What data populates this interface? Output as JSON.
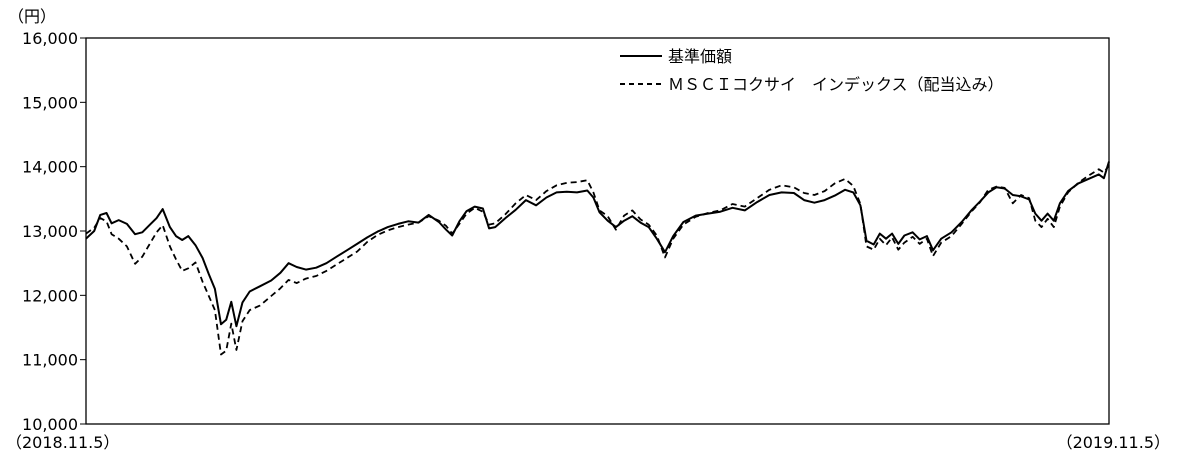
{
  "chart_data": {
    "type": "line",
    "unit": "（円）",
    "start_label": "（2018.11.5）",
    "end_label": "（2019.11.5）",
    "ylim": [
      10000,
      16000
    ],
    "yticks": [
      10000,
      11000,
      12000,
      13000,
      14000,
      15000,
      16000
    ],
    "ytick_labels": [
      "10,000",
      "11,000",
      "12,000",
      "13,000",
      "14,000",
      "15,000",
      "16,000"
    ],
    "grid": false,
    "legend_position": "top-right",
    "x_range": [
      0,
      1
    ],
    "series": [
      {
        "name": "基準価額",
        "style": "solid",
        "points": [
          [
            0.0,
            12880
          ],
          [
            0.008,
            13000
          ],
          [
            0.014,
            13250
          ],
          [
            0.02,
            13280
          ],
          [
            0.025,
            13120
          ],
          [
            0.032,
            13170
          ],
          [
            0.04,
            13110
          ],
          [
            0.048,
            12950
          ],
          [
            0.055,
            12980
          ],
          [
            0.062,
            13090
          ],
          [
            0.069,
            13200
          ],
          [
            0.075,
            13340
          ],
          [
            0.082,
            13060
          ],
          [
            0.088,
            12920
          ],
          [
            0.094,
            12860
          ],
          [
            0.1,
            12920
          ],
          [
            0.107,
            12780
          ],
          [
            0.114,
            12580
          ],
          [
            0.12,
            12330
          ],
          [
            0.126,
            12100
          ],
          [
            0.132,
            11550
          ],
          [
            0.137,
            11620
          ],
          [
            0.142,
            11900
          ],
          [
            0.147,
            11520
          ],
          [
            0.153,
            11890
          ],
          [
            0.16,
            12060
          ],
          [
            0.17,
            12140
          ],
          [
            0.181,
            12230
          ],
          [
            0.19,
            12350
          ],
          [
            0.198,
            12500
          ],
          [
            0.206,
            12440
          ],
          [
            0.215,
            12400
          ],
          [
            0.225,
            12430
          ],
          [
            0.235,
            12500
          ],
          [
            0.245,
            12600
          ],
          [
            0.255,
            12700
          ],
          [
            0.265,
            12800
          ],
          [
            0.275,
            12900
          ],
          [
            0.285,
            12990
          ],
          [
            0.295,
            13060
          ],
          [
            0.305,
            13110
          ],
          [
            0.315,
            13150
          ],
          [
            0.325,
            13130
          ],
          [
            0.335,
            13250
          ],
          [
            0.345,
            13140
          ],
          [
            0.352,
            13020
          ],
          [
            0.358,
            12930
          ],
          [
            0.365,
            13150
          ],
          [
            0.372,
            13310
          ],
          [
            0.38,
            13380
          ],
          [
            0.388,
            13350
          ],
          [
            0.394,
            13040
          ],
          [
            0.4,
            13060
          ],
          [
            0.41,
            13200
          ],
          [
            0.42,
            13330
          ],
          [
            0.43,
            13480
          ],
          [
            0.44,
            13400
          ],
          [
            0.45,
            13520
          ],
          [
            0.46,
            13600
          ],
          [
            0.47,
            13610
          ],
          [
            0.48,
            13600
          ],
          [
            0.49,
            13630
          ],
          [
            0.496,
            13520
          ],
          [
            0.502,
            13290
          ],
          [
            0.51,
            13160
          ],
          [
            0.518,
            13060
          ],
          [
            0.526,
            13160
          ],
          [
            0.534,
            13230
          ],
          [
            0.542,
            13130
          ],
          [
            0.55,
            13060
          ],
          [
            0.558,
            12880
          ],
          [
            0.566,
            12670
          ],
          [
            0.574,
            12920
          ],
          [
            0.584,
            13140
          ],
          [
            0.596,
            13240
          ],
          [
            0.608,
            13270
          ],
          [
            0.62,
            13300
          ],
          [
            0.632,
            13360
          ],
          [
            0.644,
            13320
          ],
          [
            0.656,
            13450
          ],
          [
            0.668,
            13560
          ],
          [
            0.68,
            13600
          ],
          [
            0.692,
            13590
          ],
          [
            0.702,
            13480
          ],
          [
            0.712,
            13440
          ],
          [
            0.722,
            13480
          ],
          [
            0.732,
            13550
          ],
          [
            0.742,
            13640
          ],
          [
            0.75,
            13600
          ],
          [
            0.757,
            13400
          ],
          [
            0.763,
            12850
          ],
          [
            0.77,
            12790
          ],
          [
            0.776,
            12960
          ],
          [
            0.782,
            12880
          ],
          [
            0.788,
            12960
          ],
          [
            0.794,
            12800
          ],
          [
            0.8,
            12930
          ],
          [
            0.808,
            12980
          ],
          [
            0.815,
            12870
          ],
          [
            0.822,
            12920
          ],
          [
            0.828,
            12700
          ],
          [
            0.836,
            12880
          ],
          [
            0.846,
            12980
          ],
          [
            0.856,
            13140
          ],
          [
            0.866,
            13330
          ],
          [
            0.874,
            13460
          ],
          [
            0.882,
            13600
          ],
          [
            0.89,
            13680
          ],
          [
            0.898,
            13660
          ],
          [
            0.906,
            13560
          ],
          [
            0.914,
            13540
          ],
          [
            0.922,
            13490
          ],
          [
            0.928,
            13270
          ],
          [
            0.934,
            13160
          ],
          [
            0.94,
            13270
          ],
          [
            0.946,
            13160
          ],
          [
            0.952,
            13430
          ],
          [
            0.96,
            13620
          ],
          [
            0.97,
            13740
          ],
          [
            0.98,
            13810
          ],
          [
            0.99,
            13880
          ],
          [
            0.995,
            13820
          ],
          [
            1.0,
            14080
          ]
        ]
      },
      {
        "name": "ＭＳＣＩコクサイ　インデックス（配当込み）",
        "style": "dashed",
        "points": [
          [
            0.0,
            12960
          ],
          [
            0.008,
            13050
          ],
          [
            0.014,
            13200
          ],
          [
            0.02,
            13150
          ],
          [
            0.025,
            12950
          ],
          [
            0.032,
            12880
          ],
          [
            0.04,
            12760
          ],
          [
            0.048,
            12490
          ],
          [
            0.055,
            12600
          ],
          [
            0.062,
            12790
          ],
          [
            0.069,
            12980
          ],
          [
            0.075,
            13090
          ],
          [
            0.082,
            12760
          ],
          [
            0.088,
            12560
          ],
          [
            0.094,
            12380
          ],
          [
            0.1,
            12420
          ],
          [
            0.107,
            12510
          ],
          [
            0.114,
            12210
          ],
          [
            0.12,
            11990
          ],
          [
            0.126,
            11770
          ],
          [
            0.132,
            11080
          ],
          [
            0.137,
            11140
          ],
          [
            0.142,
            11560
          ],
          [
            0.147,
            11150
          ],
          [
            0.153,
            11600
          ],
          [
            0.16,
            11770
          ],
          [
            0.17,
            11840
          ],
          [
            0.181,
            11990
          ],
          [
            0.19,
            12110
          ],
          [
            0.198,
            12240
          ],
          [
            0.206,
            12190
          ],
          [
            0.215,
            12260
          ],
          [
            0.225,
            12300
          ],
          [
            0.235,
            12380
          ],
          [
            0.245,
            12480
          ],
          [
            0.255,
            12580
          ],
          [
            0.265,
            12680
          ],
          [
            0.275,
            12830
          ],
          [
            0.285,
            12940
          ],
          [
            0.295,
            13010
          ],
          [
            0.305,
            13060
          ],
          [
            0.315,
            13100
          ],
          [
            0.325,
            13130
          ],
          [
            0.335,
            13230
          ],
          [
            0.345,
            13160
          ],
          [
            0.352,
            13080
          ],
          [
            0.358,
            12960
          ],
          [
            0.365,
            13110
          ],
          [
            0.372,
            13270
          ],
          [
            0.38,
            13360
          ],
          [
            0.388,
            13300
          ],
          [
            0.394,
            13100
          ],
          [
            0.4,
            13120
          ],
          [
            0.41,
            13260
          ],
          [
            0.42,
            13430
          ],
          [
            0.43,
            13560
          ],
          [
            0.44,
            13480
          ],
          [
            0.45,
            13620
          ],
          [
            0.46,
            13710
          ],
          [
            0.47,
            13750
          ],
          [
            0.48,
            13760
          ],
          [
            0.49,
            13790
          ],
          [
            0.496,
            13600
          ],
          [
            0.502,
            13320
          ],
          [
            0.51,
            13230
          ],
          [
            0.518,
            13020
          ],
          [
            0.526,
            13240
          ],
          [
            0.534,
            13320
          ],
          [
            0.542,
            13180
          ],
          [
            0.55,
            13100
          ],
          [
            0.558,
            12930
          ],
          [
            0.566,
            12590
          ],
          [
            0.574,
            12880
          ],
          [
            0.584,
            13100
          ],
          [
            0.596,
            13220
          ],
          [
            0.608,
            13280
          ],
          [
            0.62,
            13320
          ],
          [
            0.632,
            13420
          ],
          [
            0.644,
            13380
          ],
          [
            0.656,
            13510
          ],
          [
            0.668,
            13640
          ],
          [
            0.68,
            13710
          ],
          [
            0.692,
            13680
          ],
          [
            0.702,
            13590
          ],
          [
            0.712,
            13560
          ],
          [
            0.722,
            13620
          ],
          [
            0.732,
            13740
          ],
          [
            0.742,
            13810
          ],
          [
            0.75,
            13700
          ],
          [
            0.757,
            13420
          ],
          [
            0.763,
            12760
          ],
          [
            0.77,
            12710
          ],
          [
            0.776,
            12880
          ],
          [
            0.782,
            12780
          ],
          [
            0.788,
            12900
          ],
          [
            0.794,
            12710
          ],
          [
            0.8,
            12820
          ],
          [
            0.808,
            12910
          ],
          [
            0.815,
            12800
          ],
          [
            0.822,
            12880
          ],
          [
            0.828,
            12610
          ],
          [
            0.836,
            12820
          ],
          [
            0.846,
            12920
          ],
          [
            0.856,
            13110
          ],
          [
            0.866,
            13310
          ],
          [
            0.874,
            13450
          ],
          [
            0.882,
            13640
          ],
          [
            0.89,
            13690
          ],
          [
            0.898,
            13670
          ],
          [
            0.906,
            13430
          ],
          [
            0.914,
            13560
          ],
          [
            0.922,
            13510
          ],
          [
            0.928,
            13160
          ],
          [
            0.934,
            13060
          ],
          [
            0.94,
            13190
          ],
          [
            0.946,
            13060
          ],
          [
            0.952,
            13380
          ],
          [
            0.96,
            13600
          ],
          [
            0.97,
            13750
          ],
          [
            0.98,
            13860
          ],
          [
            0.99,
            13960
          ],
          [
            0.995,
            13910
          ],
          [
            1.0,
            14020
          ]
        ]
      }
    ]
  }
}
